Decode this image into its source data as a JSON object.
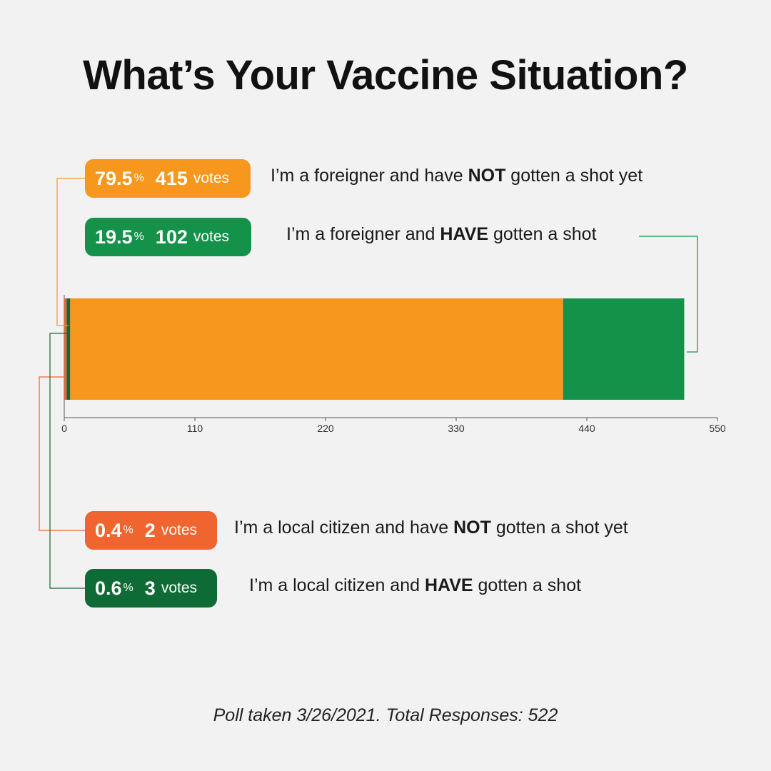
{
  "chart_data": {
    "type": "bar",
    "orientation": "horizontal-stacked",
    "title": "What’s Your Vaccine Situation?",
    "xlim": [
      0,
      550
    ],
    "xticks": [
      0,
      110,
      220,
      330,
      440,
      550
    ],
    "segments_order": [
      2,
      3,
      0,
      1
    ],
    "series": [
      {
        "percent": "79.5",
        "pct_sign": "%",
        "count": "415",
        "votes_word": "votes",
        "value": 415,
        "label_pre": "I’m a foreigner and have ",
        "label_bold": "NOT",
        "label_post": " gotten a shot yet",
        "color": "#f7971e"
      },
      {
        "percent": "19.5",
        "pct_sign": "%",
        "count": "102",
        "votes_word": "votes",
        "value": 102,
        "label_pre": "I’m a foreigner and ",
        "label_bold": "HAVE",
        "label_post": " gotten a shot",
        "color": "#15924a"
      },
      {
        "percent": "0.4",
        "pct_sign": "%",
        "count": "2",
        "votes_word": "votes",
        "value": 2,
        "label_pre": "I’m a local citizen and have ",
        "label_bold": "NOT",
        "label_post": " gotten a shot yet",
        "color": "#f06430"
      },
      {
        "percent": "0.6",
        "pct_sign": "%",
        "count": "3",
        "votes_word": "votes",
        "value": 3,
        "label_pre": "I’m a local citizen and ",
        "label_bold": "HAVE",
        "label_post": " gotten a shot",
        "color": "#0f6b35"
      }
    ],
    "footnote": "Poll taken 3/26/2021. Total Responses: 522"
  }
}
